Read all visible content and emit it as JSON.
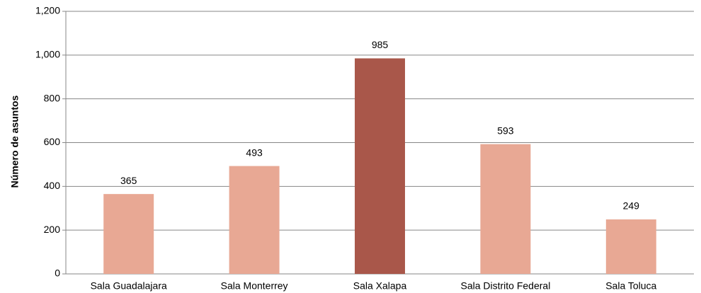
{
  "chart_data": {
    "type": "bar",
    "y_label": "Número de asuntos",
    "categories": [
      "Sala Guadalajara",
      "Sala Monterrey",
      "Sala Xalapa",
      "Sala Distrito Federal",
      "Sala Toluca"
    ],
    "values": [
      365,
      493,
      985,
      593,
      249
    ],
    "colors": [
      "#e8a894",
      "#e8a894",
      "#a9574a",
      "#e8a894",
      "#e8a894"
    ],
    "ylim": [
      0,
      1200
    ],
    "yticks": [
      0,
      200,
      400,
      600,
      800,
      {
        "value": 1000,
        "label": "1,000"
      },
      {
        "value": 1200,
        "label": "1,200"
      }
    ],
    "grid": true
  }
}
